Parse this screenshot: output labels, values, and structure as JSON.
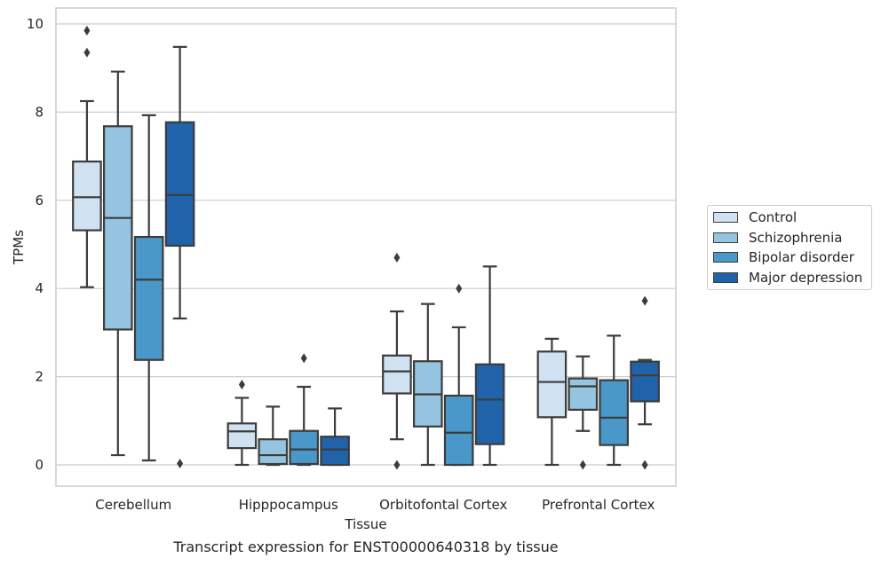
{
  "chart_data": {
    "type": "box",
    "title": "",
    "caption": "Transcript expression for ENST00000640318 by tissue",
    "xlabel": "Tissue",
    "ylabel": "TPMs",
    "ylim": [
      -0.45,
      10.35
    ],
    "yticks": [
      0,
      2,
      4,
      6,
      8,
      10
    ],
    "grid": "horizontal",
    "legend_position": "right",
    "categories": [
      "Cerebellum",
      "Hipppocampus",
      "Orbitofontal Cortex",
      "Prefrontal Cortex"
    ],
    "series": [
      {
        "name": "Control",
        "color": "#d0e1f2",
        "boxes": [
          {
            "whislo": 4.03,
            "q1": 5.32,
            "med": 6.07,
            "q3": 6.88,
            "whishi": 8.25,
            "fliers": [
              9.35,
              9.85
            ]
          },
          {
            "whislo": 0.0,
            "q1": 0.38,
            "med": 0.76,
            "q3": 0.94,
            "whishi": 1.52,
            "fliers": [
              1.82
            ]
          },
          {
            "whislo": 0.58,
            "q1": 1.62,
            "med": 2.12,
            "q3": 2.48,
            "whishi": 3.48,
            "fliers": [
              4.7,
              0.0
            ]
          },
          {
            "whislo": 0.0,
            "q1": 1.08,
            "med": 1.88,
            "q3": 2.57,
            "whishi": 2.86,
            "fliers": []
          }
        ]
      },
      {
        "name": "Schizophrenia",
        "color": "#94c4df",
        "boxes": [
          {
            "whislo": 0.22,
            "q1": 3.07,
            "med": 5.6,
            "q3": 7.68,
            "whishi": 8.92,
            "fliers": []
          },
          {
            "whislo": 0.0,
            "q1": 0.02,
            "med": 0.22,
            "q3": 0.58,
            "whishi": 1.32,
            "fliers": []
          },
          {
            "whislo": 0.0,
            "q1": 0.87,
            "med": 1.6,
            "q3": 2.35,
            "whishi": 3.65,
            "fliers": []
          },
          {
            "whislo": 0.77,
            "q1": 1.25,
            "med": 1.78,
            "q3": 1.96,
            "whishi": 2.46,
            "fliers": [
              0.0
            ]
          }
        ]
      },
      {
        "name": "Bipolar disorder",
        "color": "#4a98c9",
        "boxes": [
          {
            "whislo": 0.1,
            "q1": 2.38,
            "med": 4.2,
            "q3": 5.17,
            "whishi": 7.93,
            "fliers": []
          },
          {
            "whislo": 0.0,
            "q1": 0.02,
            "med": 0.35,
            "q3": 0.77,
            "whishi": 1.77,
            "fliers": [
              2.42
            ]
          },
          {
            "whislo": 0.0,
            "q1": 0.0,
            "med": 0.73,
            "q3": 1.57,
            "whishi": 3.12,
            "fliers": [
              4.0
            ]
          },
          {
            "whislo": 0.0,
            "q1": 0.45,
            "med": 1.07,
            "q3": 1.92,
            "whishi": 2.93,
            "fliers": []
          }
        ]
      },
      {
        "name": "Major depression",
        "color": "#2163aa",
        "boxes": [
          {
            "whislo": 3.32,
            "q1": 4.97,
            "med": 6.12,
            "q3": 7.77,
            "whishi": 9.48,
            "fliers": [
              0.03
            ]
          },
          {
            "whislo": 0.0,
            "q1": 0.0,
            "med": 0.35,
            "q3": 0.64,
            "whishi": 1.28,
            "fliers": []
          },
          {
            "whislo": 0.0,
            "q1": 0.47,
            "med": 1.48,
            "q3": 2.28,
            "whishi": 4.5,
            "fliers": []
          },
          {
            "whislo": 0.92,
            "q1": 1.44,
            "med": 2.03,
            "q3": 2.34,
            "whishi": 2.38,
            "fliers": [
              3.72,
              0.0
            ]
          }
        ]
      }
    ]
  }
}
